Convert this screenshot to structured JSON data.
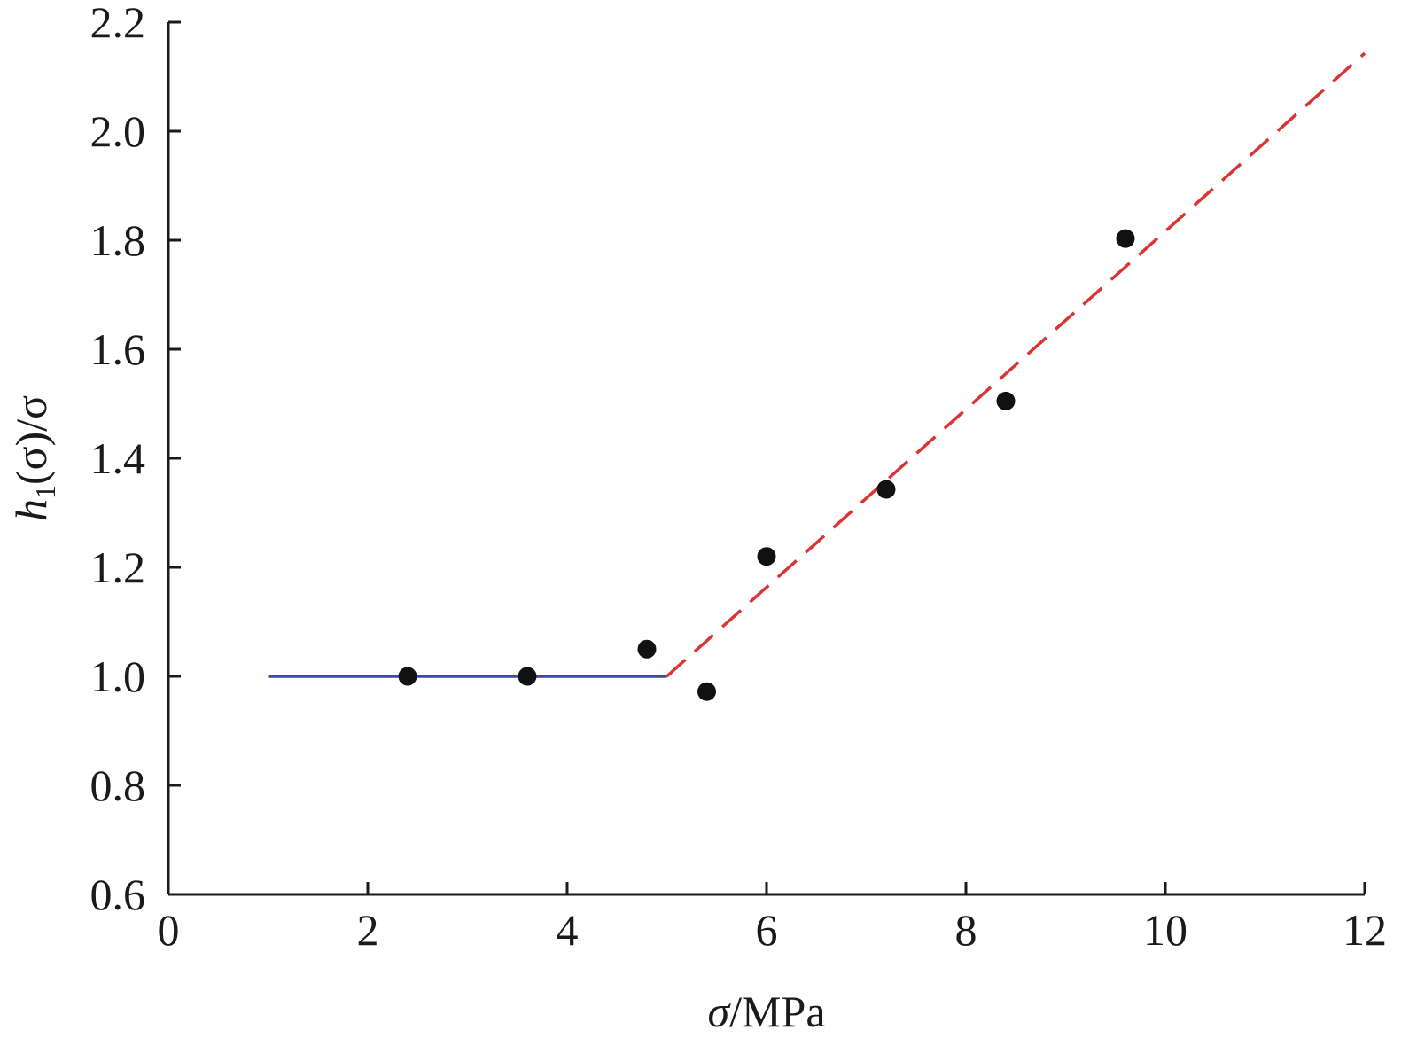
{
  "chart_data": {
    "type": "scatter",
    "title": "",
    "xlabel": {
      "symbol": "σ",
      "unit": "/MPa"
    },
    "ylabel": {
      "var": "h",
      "sub": "1",
      "rest": "(σ)/σ"
    },
    "xlim": [
      0,
      12
    ],
    "ylim": [
      0.6,
      2.2
    ],
    "x_ticks": [
      "0",
      "2",
      "4",
      "6",
      "8",
      "10",
      "12"
    ],
    "y_ticks": [
      "0.6",
      "0.8",
      "1.0",
      "1.2",
      "1.4",
      "1.6",
      "1.8",
      "2.0",
      "2.2"
    ],
    "grid": false,
    "legend": "none",
    "points": [
      {
        "x": 2.4,
        "y": 1.0
      },
      {
        "x": 3.6,
        "y": 1.0
      },
      {
        "x": 4.8,
        "y": 1.05
      },
      {
        "x": 5.4,
        "y": 0.972
      },
      {
        "x": 6.0,
        "y": 1.22
      },
      {
        "x": 7.2,
        "y": 1.343
      },
      {
        "x": 8.4,
        "y": 1.505
      },
      {
        "x": 9.6,
        "y": 1.803
      }
    ],
    "lines": [
      {
        "style": "solid",
        "color": "#3b4a9b",
        "x": [
          1.0,
          5.0
        ],
        "y": [
          1.0,
          1.0
        ]
      },
      {
        "style": "dashed",
        "color": "#d93535",
        "x": [
          5.0,
          12.0
        ],
        "y": [
          1.0,
          2.143
        ]
      }
    ],
    "colors": {
      "points": "#111111",
      "axes": "#1a1a1a"
    }
  }
}
